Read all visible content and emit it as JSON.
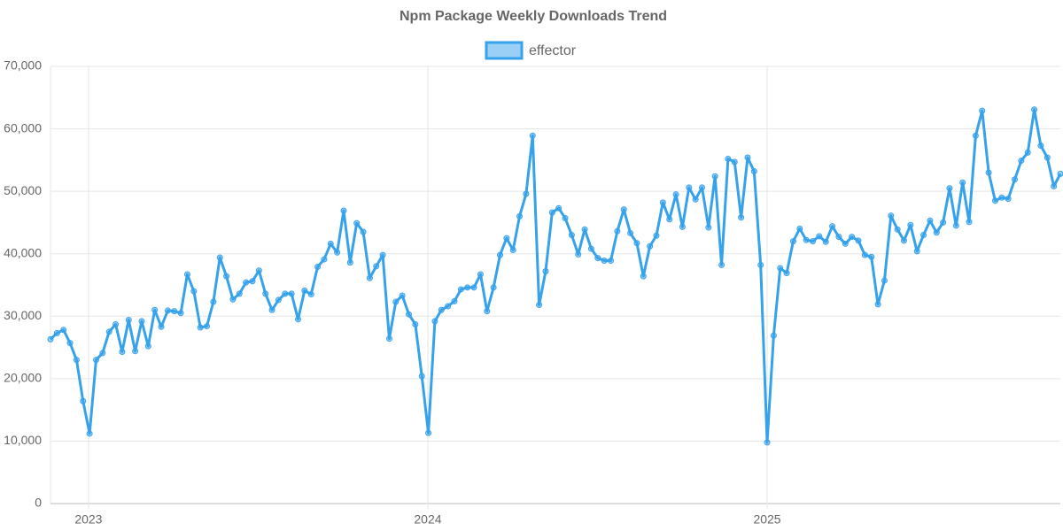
{
  "chart_data": {
    "type": "line",
    "title": "Npm Package Weekly Downloads Trend",
    "x": [
      2022.888,
      2022.9072,
      2022.9264,
      2022.9456,
      2022.9648,
      2022.984,
      2023.0032,
      2023.0224,
      2023.0416,
      2023.0608,
      2023.08,
      2023.0992,
      2023.1184,
      2023.1376,
      2023.1568,
      2023.176,
      2023.1952,
      2023.2144,
      2023.2336,
      2023.2528,
      2023.272,
      2023.2912,
      2023.3104,
      2023.3296,
      2023.3488,
      2023.368,
      2023.3872,
      2023.4064,
      2023.4256,
      2023.4448,
      2023.464,
      2023.4832,
      2023.5024,
      2023.5216,
      2023.5408,
      2023.56,
      2023.5792,
      2023.5984,
      2023.6176,
      2023.6368,
      2023.656,
      2023.6752,
      2023.6944,
      2023.7136,
      2023.7328,
      2023.752,
      2023.7712,
      2023.7904,
      2023.8096,
      2023.8288,
      2023.848,
      2023.8672,
      2023.8864,
      2023.9056,
      2023.9248,
      2023.944,
      2023.9632,
      2023.9824,
      2024.0016,
      2024.0208,
      2024.04,
      2024.0592,
      2024.0784,
      2024.0976,
      2024.1168,
      2024.136,
      2024.1552,
      2024.1744,
      2024.1936,
      2024.2128,
      2024.232,
      2024.2512,
      2024.2704,
      2024.2896,
      2024.3088,
      2024.328,
      2024.3472,
      2024.3664,
      2024.3856,
      2024.4048,
      2024.424,
      2024.4432,
      2024.4624,
      2024.4816,
      2024.5008,
      2024.52,
      2024.5392,
      2024.5584,
      2024.5776,
      2024.5968,
      2024.616,
      2024.6352,
      2024.6544,
      2024.6736,
      2024.6928,
      2024.712,
      2024.7312,
      2024.7504,
      2024.7696,
      2024.7888,
      2024.808,
      2024.8272,
      2024.8464,
      2024.8656,
      2024.8848,
      2024.904,
      2024.9232,
      2024.9424,
      2024.9616,
      2024.9808,
      2025.0,
      2025.0192,
      2025.0384,
      2025.0576,
      2025.0768,
      2025.096,
      2025.1152,
      2025.1344,
      2025.1536,
      2025.1728,
      2025.192,
      2025.2112,
      2025.2304,
      2025.2496,
      2025.2688,
      2025.288,
      2025.3072,
      2025.3264,
      2025.3456,
      2025.3648,
      2025.384,
      2025.4032,
      2025.4224,
      2025.4416,
      2025.4608,
      2025.48,
      2025.4992,
      2025.5184,
      2025.5376,
      2025.5568,
      2025.576,
      2025.5952,
      2025.6144,
      2025.6336,
      2025.6528,
      2025.672,
      2025.6912,
      2025.7104,
      2025.7296,
      2025.7488,
      2025.768,
      2025.7872,
      2025.8064,
      2025.8256,
      2025.8448,
      2025.864
    ],
    "series": [
      {
        "name": "effector",
        "color": "#36a2eb",
        "values": [
          26300,
          27300,
          27800,
          25700,
          23000,
          16400,
          11200,
          23000,
          24100,
          27500,
          28700,
          24300,
          29400,
          24400,
          29200,
          25200,
          31000,
          28300,
          30900,
          30800,
          30500,
          36700,
          34000,
          28200,
          28400,
          32300,
          39400,
          36400,
          32700,
          33600,
          35400,
          35600,
          37300,
          33600,
          31000,
          32600,
          33600,
          33600,
          29500,
          34100,
          33500,
          37900,
          39100,
          41600,
          40200,
          46900,
          38600,
          44900,
          43500,
          36100,
          38000,
          39800,
          26400,
          32300,
          33300,
          30300,
          28700,
          20400,
          11300,
          29200,
          31000,
          31600,
          32400,
          34300,
          34600,
          34600,
          36700,
          30800,
          34600,
          39800,
          42500,
          40600,
          46000,
          49600,
          58900,
          31800,
          37200,
          46600,
          47300,
          45700,
          43000,
          39900,
          43900,
          40800,
          39300,
          38900,
          38900,
          43600,
          47100,
          43300,
          41700,
          36400,
          41200,
          42900,
          48200,
          45500,
          49500,
          44300,
          50600,
          48700,
          50600,
          44200,
          52400,
          38200,
          55200,
          54700,
          45800,
          55400,
          53200,
          38200,
          9800,
          26900,
          37700,
          36900,
          42000,
          44000,
          42200,
          42000,
          42800,
          41900,
          44400,
          42700,
          41600,
          42700,
          42100,
          39800,
          39500,
          31900,
          35700,
          46100,
          43900,
          42100,
          44600,
          40400,
          43000,
          45300,
          43400,
          45000,
          50500,
          44500,
          51400,
          45100,
          58900,
          62900,
          53000,
          48500,
          49000,
          48800,
          51900,
          54900,
          56200,
          63100,
          57300,
          55400,
          50800,
          52800
        ]
      }
    ],
    "xlim": [
      2022.888,
      2025.864
    ],
    "xticks": [
      2023,
      2024,
      2025
    ],
    "ylim": [
      0,
      70000
    ],
    "yticks": [
      0,
      {
        "value": 10000,
        "label": "10,000"
      },
      {
        "value": 20000,
        "label": "20,000"
      },
      {
        "value": 30000,
        "label": "30,000"
      },
      {
        "value": 40000,
        "label": "40,000"
      },
      {
        "value": 50000,
        "label": "50,000"
      },
      {
        "value": 60000,
        "label": "60,000"
      },
      {
        "value": 70000,
        "label": "70,000"
      }
    ],
    "grid": true,
    "legend": "top"
  }
}
